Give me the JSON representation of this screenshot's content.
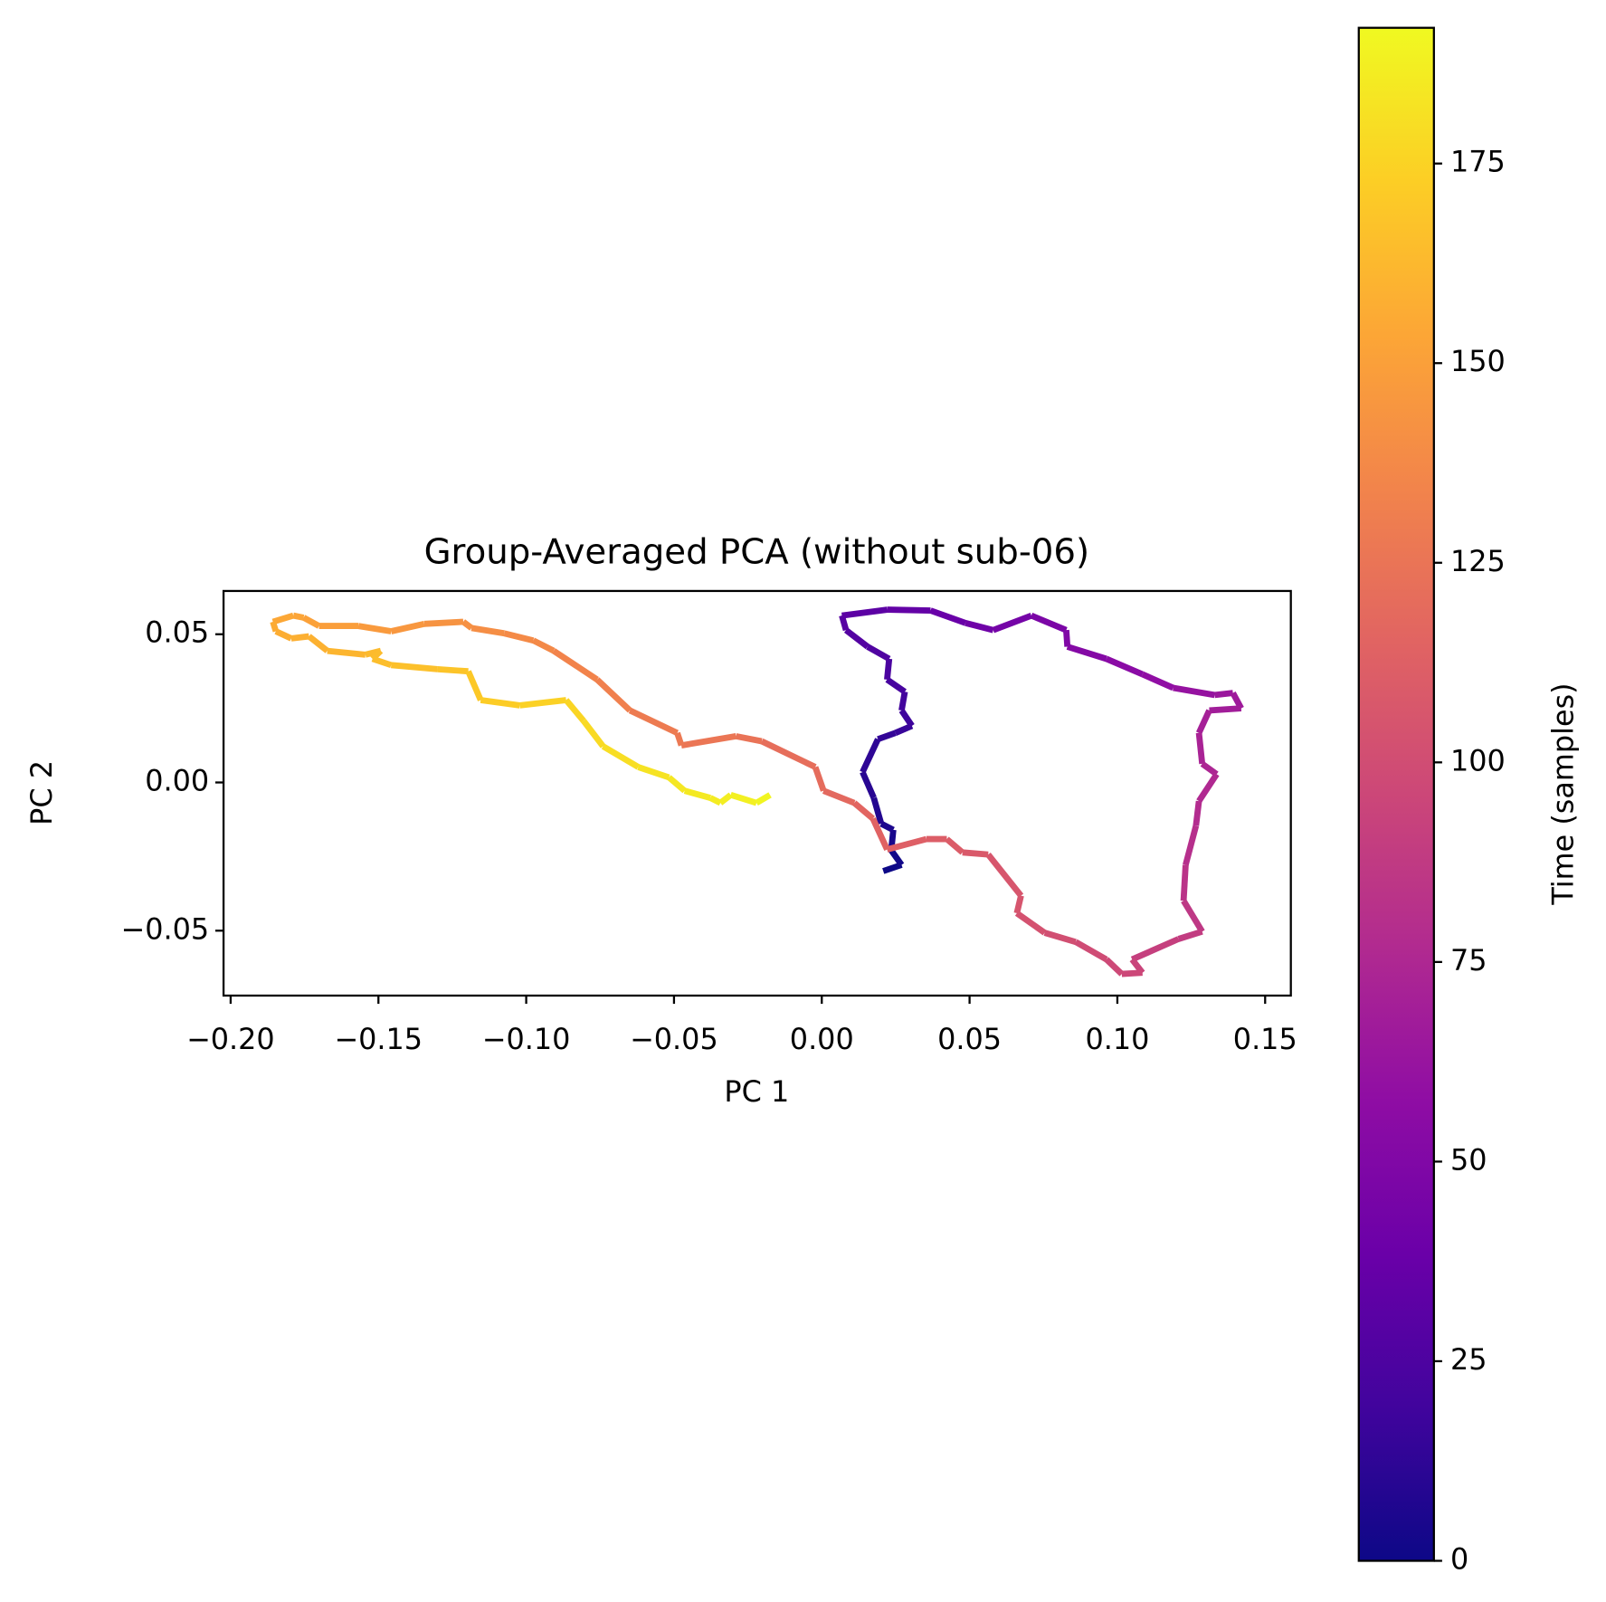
{
  "chart_data": {
    "type": "colored-line",
    "title": "Group-Averaged PCA (without sub-06)",
    "x_label": "PC 1",
    "y_label": "PC 2",
    "colorbar_label": "Time (samples)",
    "x": [
      0.0208,
      0.027,
      0.0235,
      0.0242,
      0.0201,
      0.0176,
      0.0138,
      0.019,
      0.0249,
      0.0305,
      0.027,
      0.0281,
      0.0221,
      0.0228,
      0.0155,
      0.0082,
      0.0068,
      0.0221,
      0.0368,
      0.0486,
      0.058,
      0.0709,
      0.0827,
      0.0831,
      0.0963,
      0.1085,
      0.1189,
      0.1329,
      0.1391,
      0.1419,
      0.1311,
      0.1276,
      0.1287,
      0.1336,
      0.1276,
      0.1266,
      0.1231,
      0.1224,
      0.1287,
      0.1207,
      0.105,
      0.1085,
      0.1015,
      0.0963,
      0.0859,
      0.0754,
      0.066,
      0.0674,
      0.0563,
      0.0476,
      0.0423,
      0.0354,
      0.0221,
      0.0173,
      0.011,
      0.0006,
      -0.0022,
      -0.0203,
      -0.029,
      -0.0475,
      -0.0489,
      -0.0649,
      -0.076,
      -0.0907,
      -0.0976,
      -0.1074,
      -0.1185,
      -0.1213,
      -0.1345,
      -0.1457,
      -0.1568,
      -0.1701,
      -0.1753,
      -0.1788,
      -0.1857,
      -0.1847,
      -0.1795,
      -0.1735,
      -0.1673,
      -0.1544,
      -0.1492,
      -0.152,
      -0.1457,
      -0.13,
      -0.1196,
      -0.1154,
      -0.1022,
      -0.0865,
      -0.0806,
      -0.074,
      -0.0621,
      -0.0517,
      -0.0464,
      -0.0377,
      -0.0343,
      -0.0308,
      -0.0221,
      -0.0175
    ],
    "y": [
      -0.0299,
      -0.0278,
      -0.0229,
      -0.016,
      -0.0139,
      -0.0052,
      0.0035,
      0.0146,
      0.0167,
      0.0191,
      0.0243,
      0.0306,
      0.0347,
      0.0417,
      0.0458,
      0.0514,
      0.0563,
      0.0583,
      0.058,
      0.0538,
      0.0514,
      0.0563,
      0.0514,
      0.0458,
      0.0417,
      0.0365,
      0.0319,
      0.0295,
      0.0302,
      0.025,
      0.0243,
      0.0167,
      0.0063,
      0.0028,
      -0.0063,
      -0.0146,
      -0.0278,
      -0.0399,
      -0.0503,
      -0.0528,
      -0.0597,
      -0.0642,
      -0.0646,
      -0.0597,
      -0.0538,
      -0.0507,
      -0.0441,
      -0.0382,
      -0.0243,
      -0.0236,
      -0.0191,
      -0.0191,
      -0.0226,
      -0.0122,
      -0.0069,
      -0.0028,
      0.0052,
      0.0139,
      0.0156,
      0.0125,
      0.0167,
      0.0243,
      0.0347,
      0.0444,
      0.0479,
      0.0503,
      0.0521,
      0.0542,
      0.0535,
      0.051,
      0.0528,
      0.0528,
      0.0556,
      0.0563,
      0.0542,
      0.051,
      0.0486,
      0.0493,
      0.0444,
      0.0431,
      0.0444,
      0.0417,
      0.0396,
      0.0382,
      0.0375,
      0.0278,
      0.026,
      0.0278,
      0.0208,
      0.0122,
      0.0052,
      0.0017,
      -0.0028,
      -0.0052,
      -0.0069,
      -0.0042,
      -0.0069,
      -0.0042
    ],
    "time": [
      0,
      2,
      4,
      6,
      8,
      10,
      12,
      14,
      16,
      18,
      20,
      22,
      24,
      26,
      28,
      30,
      32,
      35,
      38,
      41,
      44,
      47,
      50,
      52,
      55,
      58,
      61,
      64,
      66,
      68,
      70,
      72,
      74,
      76,
      78,
      80,
      83,
      86,
      89,
      91,
      94,
      96,
      97,
      99,
      101,
      103,
      105,
      106,
      108,
      110,
      111,
      112,
      114,
      116,
      118,
      120,
      121,
      124,
      126,
      128,
      129,
      132,
      134,
      137,
      138,
      140,
      142,
      143,
      145,
      147,
      149,
      151,
      153,
      154,
      156,
      157,
      158,
      159,
      161,
      163,
      164,
      165,
      166,
      168,
      170,
      172,
      174,
      176,
      178,
      180,
      182,
      184,
      185,
      186,
      187,
      188,
      190,
      191
    ],
    "xlim": [
      -0.2024,
      0.1587
    ],
    "ylim": [
      -0.0719,
      0.0646
    ],
    "xticks": [
      {
        "value": -0.2,
        "label": "−0.20"
      },
      {
        "value": -0.15,
        "label": "−0.15"
      },
      {
        "value": -0.1,
        "label": "−0.10"
      },
      {
        "value": -0.05,
        "label": "−0.05"
      },
      {
        "value": 0,
        "label": "0.00"
      },
      0.05,
      {
        "value": 0.1,
        "label": "0.10"
      },
      0.15
    ],
    "yticks": [
      {
        "value": -0.05,
        "label": "−0.05"
      },
      {
        "value": 0,
        "label": "0.00"
      },
      0.05
    ],
    "clim": [
      0,
      192
    ],
    "cticks": [
      0,
      25,
      50,
      75,
      100,
      125,
      150,
      175
    ],
    "colormap": [
      "#0d0887",
      "#41049d",
      "#6a00a8",
      "#8f0da4",
      "#b12a90",
      "#cc4778",
      "#e16462",
      "#f2844b",
      "#fca636",
      "#fcce25",
      "#f0f921"
    ]
  }
}
